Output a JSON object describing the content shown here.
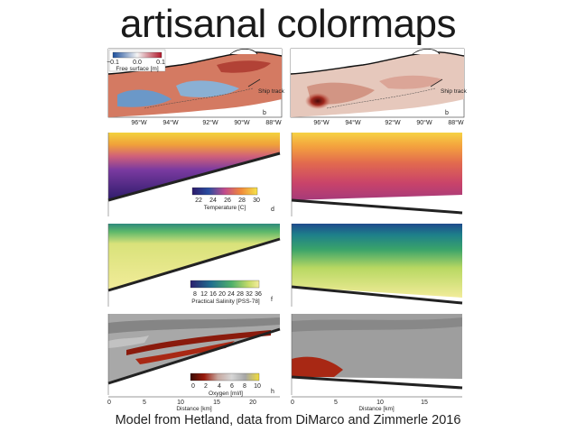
{
  "slide": {
    "title": "artisanal colormaps",
    "caption": "Model from Hetland, data from DiMarco and Zimmerle 2016"
  },
  "maps": {
    "left": {
      "colorbar_ticks": [
        "−0.1",
        "0.0",
        "0.1"
      ],
      "colorbar_label": "Free surface [m]",
      "ship_track_label": "Ship track",
      "panel_letter": "b",
      "lon_ticks": [
        "96°W",
        "94°W",
        "92°W",
        "90°W",
        "88°W"
      ]
    },
    "right": {
      "ship_track_label": "Ship track",
      "panel_letter": "b",
      "lon_ticks": [
        "96°W",
        "94°W",
        "92°W",
        "90°W",
        "88°W"
      ]
    }
  },
  "sections": {
    "temperature": {
      "colorbar_ticks": [
        "22",
        "24",
        "26",
        "28",
        "30"
      ],
      "colorbar_label": "Temperature [C]",
      "panel_letter": "d",
      "colormap_left": [
        "#2d1b6b",
        "#1f3a9a",
        "#1d6e8f",
        "#2e9c68",
        "#8cc23a",
        "#f0e531"
      ],
      "colormap_right": [
        "#3b1f5c",
        "#7a2a6e",
        "#c13a6a",
        "#e8684a",
        "#f6a23a",
        "#f4e04a"
      ]
    },
    "salinity": {
      "colorbar_ticks": [
        "8",
        "12",
        "16",
        "20",
        "24",
        "28",
        "32",
        "36"
      ],
      "colorbar_label": "Practical Salinity [PSS-78]",
      "panel_letter": "f",
      "colormap_left": [
        "#2a1f6e",
        "#25478f",
        "#1f7a8c",
        "#3aa76d",
        "#a9d45a",
        "#f1ec9a"
      ],
      "colormap_right": [
        "#2a1f6e",
        "#25478f",
        "#1f7a8c",
        "#3aa76d",
        "#a9d45a",
        "#f1ec9a"
      ]
    },
    "oxygen": {
      "colorbar_ticks": [
        "0",
        "2",
        "4",
        "6",
        "8",
        "10"
      ],
      "colorbar_label": "Oxygen [ml/l]",
      "panel_letter": "h",
      "distance_ticks_left": [
        "0",
        "5",
        "10",
        "15",
        "20"
      ],
      "distance_ticks_right": [
        "0",
        "5",
        "10",
        "15"
      ],
      "xlabel": "Distance [km]",
      "colormap": [
        "#3a0c04",
        "#8a1a0c",
        "#b84a3a",
        "#c9c9c9",
        "#9a9a9a",
        "#e8d84a"
      ]
    }
  }
}
